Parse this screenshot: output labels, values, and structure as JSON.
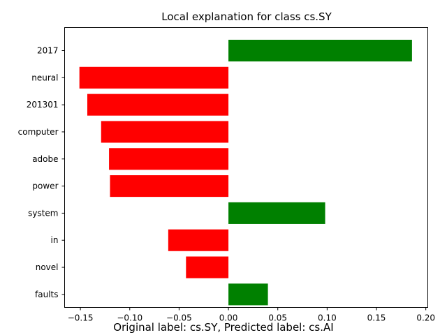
{
  "chart_data": {
    "type": "bar",
    "orientation": "horizontal",
    "title": "Local explanation for class cs.SY",
    "xlabel": "",
    "ylabel": "",
    "categories": [
      "2017",
      "neural",
      "201301",
      "computer",
      "adobe",
      "power",
      "system",
      "in",
      "novel",
      "faults"
    ],
    "values": [
      0.186,
      -0.151,
      -0.143,
      -0.129,
      -0.121,
      -0.12,
      0.098,
      -0.061,
      -0.043,
      0.04
    ],
    "xlim": [
      -0.166,
      0.202
    ],
    "xticks": [
      -0.15,
      -0.1,
      -0.05,
      0.0,
      0.05,
      0.1,
      0.15,
      0.2
    ],
    "xtick_labels": [
      "−0.15",
      "−0.10",
      "−0.05",
      "0.00",
      "0.05",
      "0.10",
      "0.15",
      "0.20"
    ],
    "grid": false,
    "colors": {
      "positive": "#008000",
      "negative": "#ff0000"
    },
    "caption": "Original label: cs.SY, Predicted label: cs.AI"
  }
}
